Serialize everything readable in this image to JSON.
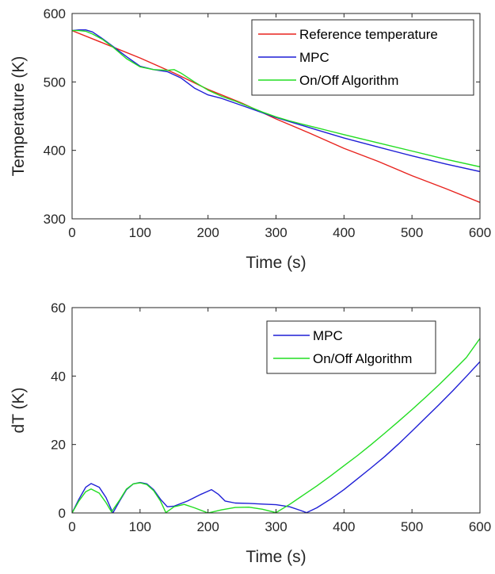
{
  "chart_data": [
    {
      "type": "line",
      "xlabel": "Time (s)",
      "ylabel": "Temperature (K)",
      "xlim": [
        0,
        600
      ],
      "ylim": [
        300,
        600
      ],
      "xticks": [
        0,
        100,
        200,
        300,
        400,
        500,
        600
      ],
      "yticks": [
        300,
        400,
        500,
        600
      ],
      "grid": false,
      "legend_position": "top-right",
      "series": [
        {
          "name": "Reference temperature",
          "color": "#e8231e",
          "x": [
            0,
            50,
            100,
            150,
            200,
            250,
            300,
            350,
            400,
            450,
            500,
            550,
            600
          ],
          "y": [
            575,
            555,
            535,
            513,
            489,
            469,
            446,
            425,
            403,
            384,
            363,
            344,
            324
          ]
        },
        {
          "name": "MPC",
          "color": "#1f1fd6",
          "x": [
            0,
            10,
            20,
            30,
            45,
            60,
            80,
            100,
            120,
            140,
            160,
            180,
            200,
            220,
            240,
            260,
            280,
            300,
            320,
            340,
            360,
            380,
            400,
            450,
            500,
            550,
            600
          ],
          "y": [
            575,
            576,
            576,
            573,
            563,
            552,
            537,
            523,
            518,
            515,
            506,
            491,
            481,
            476,
            469,
            462,
            455,
            448,
            442,
            436,
            430,
            424,
            418,
            405,
            392,
            380,
            369
          ]
        },
        {
          "name": "On/Off Algorithm",
          "color": "#22dd22",
          "x": [
            0,
            10,
            20,
            30,
            45,
            60,
            80,
            100,
            120,
            140,
            150,
            160,
            180,
            200,
            220,
            240,
            260,
            280,
            300,
            320,
            340,
            360,
            380,
            400,
            450,
            500,
            550,
            600
          ],
          "y": [
            575,
            575,
            574,
            570,
            562,
            551,
            534,
            522,
            518,
            517,
            518,
            513,
            500,
            488,
            479,
            472,
            464,
            456,
            449,
            443,
            438,
            433,
            428,
            423,
            411,
            399,
            387,
            376
          ]
        }
      ]
    },
    {
      "type": "line",
      "xlabel": "Time (s)",
      "ylabel": "dT (K)",
      "xlim": [
        0,
        600
      ],
      "ylim": [
        0,
        60
      ],
      "xticks": [
        0,
        100,
        200,
        300,
        400,
        500,
        600
      ],
      "yticks": [
        0,
        20,
        40,
        60
      ],
      "grid": false,
      "legend_position": "top-right",
      "series": [
        {
          "name": "MPC",
          "color": "#1f1fd6",
          "x": [
            0,
            10,
            20,
            28,
            40,
            50,
            60,
            70,
            80,
            90,
            100,
            110,
            120,
            130,
            140,
            150,
            170,
            190,
            205,
            215,
            225,
            240,
            260,
            280,
            300,
            320,
            335,
            345,
            360,
            380,
            400,
            420,
            440,
            460,
            480,
            500,
            520,
            540,
            560,
            580,
            600
          ],
          "y": [
            0,
            4,
            7.5,
            8.6,
            7.5,
            4.5,
            0,
            3.5,
            6.8,
            8.5,
            8.9,
            8.5,
            6.8,
            4,
            1.8,
            2,
            3.5,
            5.5,
            6.8,
            5.5,
            3.5,
            2.9,
            2.8,
            2.6,
            2.4,
            1.8,
            0.8,
            0.1,
            1.5,
            4,
            6.8,
            10,
            13.2,
            16.5,
            20.1,
            23.9,
            27.8,
            31.7,
            35.7,
            39.9,
            44.2
          ]
        },
        {
          "name": "On/Off Algorithm",
          "color": "#22dd22",
          "x": [
            0,
            10,
            20,
            28,
            40,
            50,
            58,
            70,
            80,
            90,
            100,
            110,
            120,
            130,
            138,
            150,
            165,
            180,
            200,
            220,
            240,
            260,
            280,
            300,
            320,
            340,
            360,
            380,
            400,
            420,
            440,
            460,
            480,
            500,
            520,
            540,
            560,
            580,
            600
          ],
          "y": [
            0,
            3.5,
            6.2,
            7,
            5.8,
            3,
            0.3,
            3.8,
            7,
            8.5,
            8.8,
            8.3,
            6.5,
            3.5,
            0.1,
            1.8,
            2.5,
            1.5,
            0,
            0.9,
            1.6,
            1.7,
            1.1,
            0.1,
            2.5,
            5.2,
            7.9,
            10.8,
            13.8,
            16.8,
            20,
            23.3,
            26.7,
            30.2,
            33.8,
            37.5,
            41.4,
            45.4,
            51
          ]
        }
      ]
    }
  ]
}
